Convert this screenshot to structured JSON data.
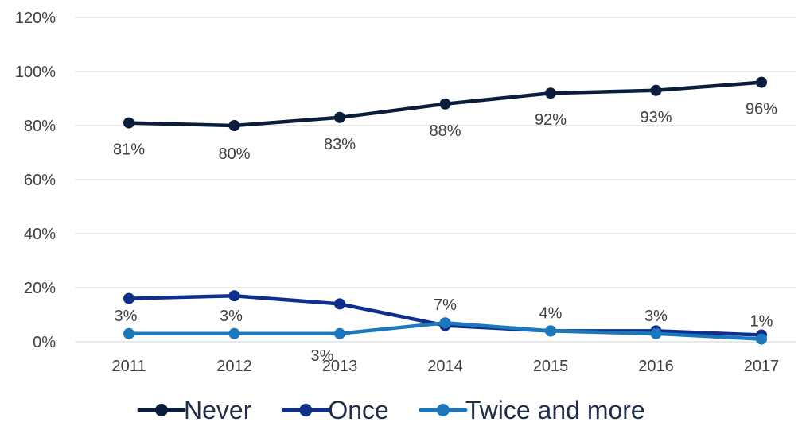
{
  "chart_data": {
    "type": "line",
    "categories": [
      "2011",
      "2012",
      "2013",
      "2014",
      "2015",
      "2016",
      "2017"
    ],
    "ylim": [
      0,
      120
    ],
    "y_ticks": [
      "0%",
      "20%",
      "40%",
      "60%",
      "80%",
      "100%",
      "120%"
    ],
    "grid": true,
    "legend_position": "bottom",
    "series": [
      {
        "name": "Never",
        "color": "#0b1d3c",
        "values": [
          81,
          80,
          83,
          88,
          92,
          93,
          96
        ],
        "labels": [
          "81%",
          "80%",
          "83%",
          "88%",
          "92%",
          "93%",
          "96%"
        ]
      },
      {
        "name": "Once",
        "color": "#0f2f8c",
        "values": [
          16,
          17,
          14,
          6,
          4,
          4,
          2.5
        ],
        "labels": []
      },
      {
        "name": "Twice and more",
        "color": "#1b78bd",
        "values": [
          3,
          3,
          3,
          7,
          4,
          3,
          1
        ],
        "labels": [
          "3%",
          "3%",
          "3%",
          "7%",
          "4%",
          "3%",
          "1%"
        ]
      }
    ]
  }
}
